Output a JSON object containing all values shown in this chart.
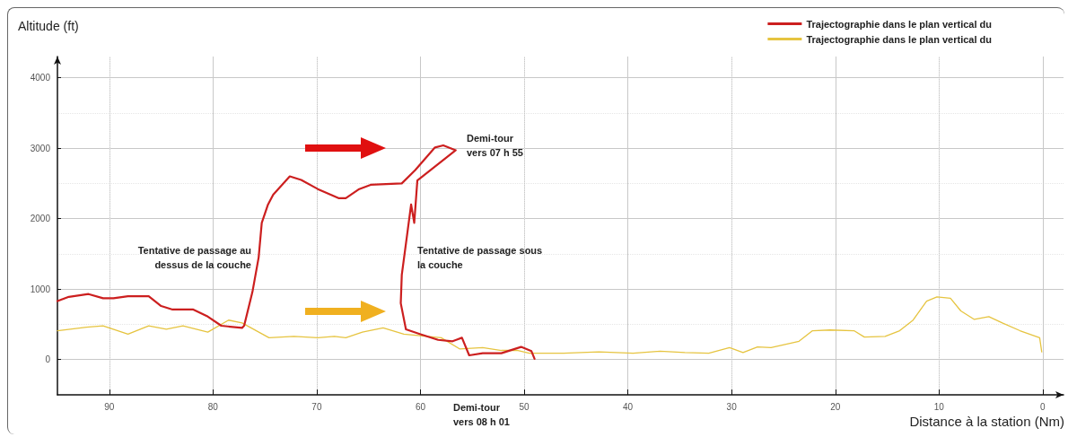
{
  "chart_data": {
    "type": "line",
    "ylabel": "Altitude (ft)",
    "xlabel": "Distance à la station (Nm)",
    "xlim": [
      95,
      -2
    ],
    "xticks": [
      90,
      80,
      70,
      60,
      50,
      40,
      30,
      20,
      10,
      0
    ],
    "ylim": [
      -500,
      4300
    ],
    "yticks": [
      0,
      1000,
      2000,
      3000,
      4000
    ],
    "grid": true,
    "legend": "top right",
    "marker": "none",
    "line_style": "solid",
    "series": [
      {
        "name": "Trajectographie dans le plan vertical du",
        "color": "#cc1f1f",
        "x": [
          95,
          93.9,
          92,
          90.6,
          89.6,
          88.2,
          86.2,
          85,
          83.9,
          81.9,
          80.5,
          79.2,
          77.2,
          77,
          76.2,
          75.6,
          75.3,
          74.7,
          74.2,
          72.6,
          71.5,
          69.9,
          67.9,
          67.2,
          65.9,
          64.8,
          61.8,
          60.5,
          58.6,
          57.8,
          56.6,
          60.3,
          60.6,
          60.9,
          61.8,
          61.9,
          61.4,
          60,
          58.3,
          56.9,
          56,
          55.3,
          54,
          52.2,
          50.3,
          49.3,
          49
        ],
        "values": [
          830,
          890,
          930,
          870,
          870,
          900,
          900,
          760,
          710,
          710,
          610,
          480,
          450,
          480,
          960,
          1450,
          1940,
          2200,
          2340,
          2600,
          2550,
          2420,
          2290,
          2290,
          2420,
          2480,
          2500,
          2690,
          3010,
          3040,
          2970,
          2540,
          1940,
          2200,
          1200,
          800,
          430,
          360,
          280,
          260,
          310,
          60,
          90,
          90,
          180,
          120,
          10
        ]
      },
      {
        "name": "Trajectographie dans le plan vertical du",
        "color": "#e6c440",
        "x": [
          95,
          92.2,
          90.6,
          88.2,
          86.2,
          84.5,
          82.9,
          80.5,
          78.5,
          77.2,
          74.6,
          72.2,
          69.9,
          68.3,
          67.2,
          65.6,
          63.6,
          61.6,
          58,
          56.2,
          54,
          52.2,
          50.6,
          49.5,
          46.2,
          42.8,
          39.5,
          36.9,
          34.5,
          32.2,
          30.2,
          28.9,
          27.5,
          26.2,
          23.5,
          22.2,
          20.5,
          18.2,
          17.2,
          15.2,
          13.8,
          12.5,
          11.2,
          10.2,
          8.9,
          7.9,
          6.6,
          5.2,
          3.9,
          2.2,
          0.3,
          0.1
        ],
        "values": [
          410,
          460,
          480,
          360,
          480,
          430,
          480,
          390,
          560,
          520,
          310,
          330,
          310,
          330,
          310,
          390,
          450,
          360,
          310,
          150,
          170,
          130,
          130,
          90,
          90,
          110,
          90,
          120,
          100,
          90,
          170,
          100,
          180,
          170,
          260,
          410,
          420,
          410,
          320,
          330,
          410,
          560,
          830,
          890,
          870,
          690,
          570,
          610,
          520,
          410,
          310,
          110
        ]
      }
    ],
    "annotations": [
      "Tentative de passage au\ndessus de la couche",
      "Tentative de passage sous\nla couche",
      "Demi-tour\nvers 07 h 55",
      "Demi-tour\nvers 08 h 01"
    ]
  }
}
